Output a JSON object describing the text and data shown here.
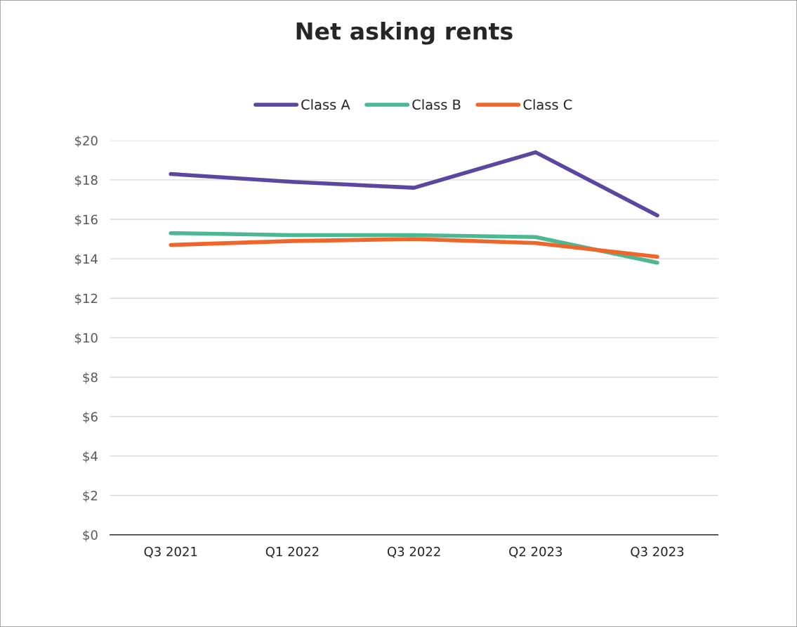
{
  "chart_data": {
    "type": "line",
    "title": "Net asking rents",
    "categories": [
      "Q3 2021",
      "Q1 2022",
      "Q3 2022",
      "Q2 2023",
      "Q3 2023"
    ],
    "series": [
      {
        "name": "Class A",
        "color": "#5b479f",
        "values": [
          18.3,
          17.9,
          17.6,
          19.4,
          16.2
        ]
      },
      {
        "name": "Class B",
        "color": "#4cb892",
        "values": [
          15.3,
          15.2,
          15.2,
          15.1,
          13.8
        ]
      },
      {
        "name": "Class C",
        "color": "#f0652a",
        "values": [
          14.7,
          14.9,
          15.0,
          14.8,
          14.1
        ]
      }
    ],
    "ylim": [
      0,
      20
    ],
    "yticks": [
      {
        "value": 0,
        "label": "$0"
      },
      {
        "value": 2,
        "label": "$2"
      },
      {
        "value": 4,
        "label": "$4"
      },
      {
        "value": 6,
        "label": "$6"
      },
      {
        "value": 8,
        "label": "$8"
      },
      {
        "value": 10,
        "label": "$10"
      },
      {
        "value": 12,
        "label": "$12"
      },
      {
        "value": 14,
        "label": "$14"
      },
      {
        "value": 16,
        "label": "$16"
      },
      {
        "value": 18,
        "label": "$18"
      },
      {
        "value": 20,
        "label": "$20"
      }
    ],
    "grid": "y",
    "legend": "top",
    "marker": "none",
    "line_style": "solid"
  }
}
